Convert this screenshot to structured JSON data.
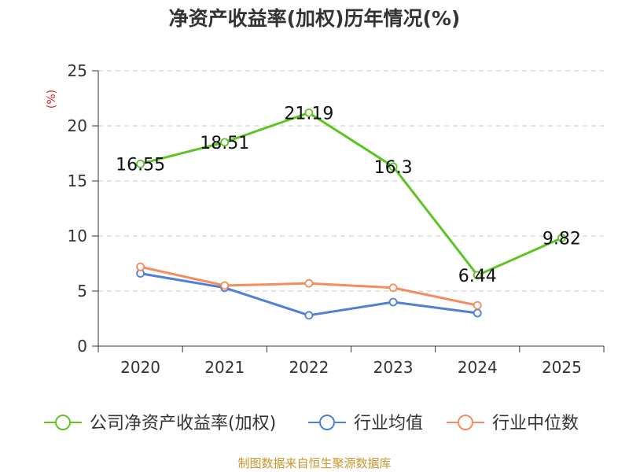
{
  "title": "净资产收益率(加权)历年情况(%)",
  "source_note": "制图数据来自恒生聚源数据库",
  "chart_data": {
    "type": "line",
    "title": "净资产收益率(加权)历年情况(%)",
    "xlabel": "",
    "ylabel": "(%)",
    "ylim": [
      0,
      25
    ],
    "yticks": [
      0,
      5,
      10,
      15,
      20,
      25
    ],
    "grid": true,
    "legend_position": "bottom",
    "categories": [
      "2020",
      "2021",
      "2022",
      "2023",
      "2024",
      "2025"
    ],
    "series": [
      {
        "name": "公司净资产收益率(加权)",
        "color": "#5dc423",
        "values": [
          16.55,
          18.51,
          21.19,
          16.3,
          6.44,
          9.82
        ],
        "labels": [
          "16.55",
          "18.51",
          "21.19",
          "16.3",
          "6.44",
          "9.82"
        ],
        "show_labels": true
      },
      {
        "name": "行业均值",
        "color": "#4f7fd8",
        "values": [
          6.6,
          5.3,
          2.8,
          4.0,
          3.0,
          null
        ],
        "show_labels": false
      },
      {
        "name": "行业中位数",
        "color": "#f48c5e",
        "values": [
          7.2,
          5.5,
          5.7,
          5.3,
          3.7,
          null
        ],
        "show_labels": false
      }
    ]
  }
}
